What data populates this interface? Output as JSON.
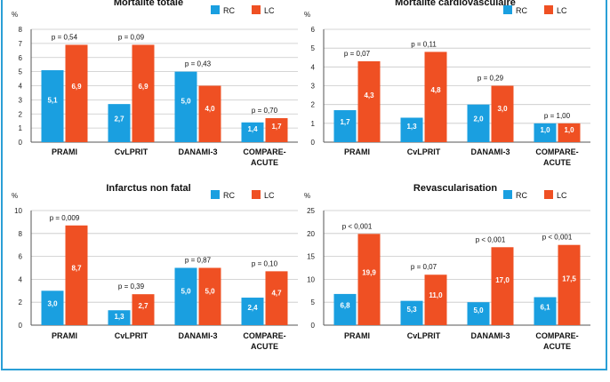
{
  "colors": {
    "rc": "#1a9fe0",
    "lc": "#ef5023",
    "grid": "#c8c8c8",
    "axis": "#555555"
  },
  "chart_data": [
    {
      "type": "bar",
      "title": "Mortalité totale",
      "ylabel": "%",
      "ylim": [
        0,
        8
      ],
      "ticks": [
        0,
        1,
        2,
        3,
        4,
        5,
        6,
        7,
        8
      ],
      "categories": [
        "PRAMI",
        "CvLPRIT",
        "DANAMI-3",
        "COMPARE-ACUTE"
      ],
      "series": [
        {
          "name": "RC",
          "values": [
            5.1,
            2.7,
            5.0,
            1.4
          ],
          "labels": [
            "5,1",
            "2,7",
            "5,0",
            "1,4"
          ]
        },
        {
          "name": "LC",
          "values": [
            6.9,
            6.9,
            4.0,
            1.7
          ],
          "labels": [
            "6,9",
            "6,9",
            "4,0",
            "1,7"
          ]
        }
      ],
      "pvalues": [
        "p = 0,54",
        "p = 0,09",
        "p = 0,43",
        "p = 0,70"
      ],
      "legend": "top-right"
    },
    {
      "type": "bar",
      "title": "Mortalité cardiovasculaire",
      "ylabel": "%",
      "ylim": [
        0,
        6
      ],
      "ticks": [
        0,
        1,
        2,
        3,
        4,
        5,
        6
      ],
      "categories": [
        "PRAMI",
        "CvLPRIT",
        "DANAMI-3",
        "COMPARE-ACUTE"
      ],
      "series": [
        {
          "name": "RC",
          "values": [
            1.7,
            1.3,
            2.0,
            1.0
          ],
          "labels": [
            "1,7",
            "1,3",
            "2,0",
            "1,0"
          ]
        },
        {
          "name": "LC",
          "values": [
            4.3,
            4.8,
            3.0,
            1.0
          ],
          "labels": [
            "4,3",
            "4,8",
            "3,0",
            "1,0"
          ]
        }
      ],
      "pvalues": [
        "p = 0,07",
        "p = 0,11",
        "p = 0,29",
        "p = 1,00"
      ],
      "legend": "top-right"
    },
    {
      "type": "bar",
      "title": "Infarctus non fatal",
      "ylabel": "%",
      "ylim": [
        0,
        10
      ],
      "ticks": [
        0,
        2,
        4,
        6,
        8,
        10
      ],
      "categories": [
        "PRAMI",
        "CvLPRIT",
        "DANAMI-3",
        "COMPARE-ACUTE"
      ],
      "series": [
        {
          "name": "RC",
          "values": [
            3.0,
            1.3,
            5.0,
            2.4
          ],
          "labels": [
            "3,0",
            "1,3",
            "5,0",
            "2,4"
          ]
        },
        {
          "name": "LC",
          "values": [
            8.7,
            2.7,
            5.0,
            4.7
          ],
          "labels": [
            "8,7",
            "2,7",
            "5,0",
            "4,7"
          ]
        }
      ],
      "pvalues": [
        "p = 0,009",
        "p = 0,39",
        "p = 0,87",
        "p = 0,10"
      ],
      "legend": "top-right"
    },
    {
      "type": "bar",
      "title": "Revascularisation",
      "ylabel": "%",
      "ylim": [
        0,
        25
      ],
      "ticks": [
        0,
        5,
        10,
        15,
        20,
        25
      ],
      "categories": [
        "PRAMI",
        "CvLPRIT",
        "DANAMI-3",
        "COMPARE-ACUTE"
      ],
      "series": [
        {
          "name": "RC",
          "values": [
            6.8,
            5.3,
            5.0,
            6.1
          ],
          "labels": [
            "6,8",
            "5,3",
            "5,0",
            "6,1"
          ]
        },
        {
          "name": "LC",
          "values": [
            19.9,
            11.0,
            17.0,
            17.5
          ],
          "labels": [
            "19,9",
            "11,0",
            "17,0",
            "17,5"
          ]
        }
      ],
      "pvalues": [
        "p < 0,001",
        "p = 0,07",
        "p < 0,001",
        "p < 0,001"
      ],
      "legend": "top-right"
    }
  ]
}
